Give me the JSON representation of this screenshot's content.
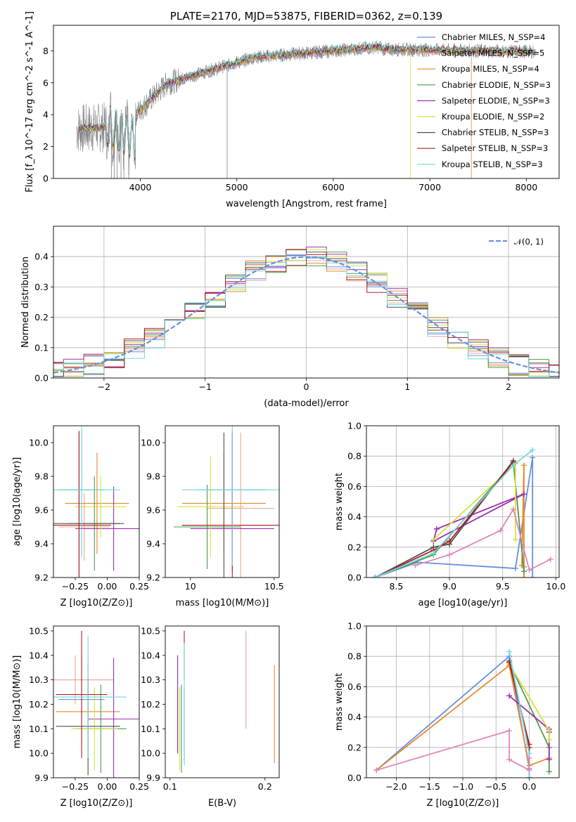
{
  "chart_data": [
    {
      "type": "line",
      "title": "PLATE=2170, MJD=53875, FIBERID=0362, z=0.139",
      "xlabel": "wavelength [Angstrom, rest frame]",
      "ylabel": "Flux [f_λ 10^-17 erg cm^-2 s^-1 A^-1]",
      "xlim": [
        3100,
        8340
      ],
      "ylim": [
        0,
        9.6
      ],
      "xticks": [
        4000,
        5000,
        6000,
        7000,
        8000
      ],
      "yticks": [
        0,
        2,
        4,
        6,
        8
      ],
      "grid": false,
      "legend_position": "top-right",
      "data_color": "#808080",
      "series": [
        {
          "name": "Chabrier MILES, N_SSP=4",
          "color": "#6890e0"
        },
        {
          "name": "Salpeter MILES, N_SSP=5",
          "color": "#e8a898"
        },
        {
          "name": "Kroupa MILES, N_SSP=4",
          "color": "#e68a2e"
        },
        {
          "name": "Chabrier ELODIE, N_SSP=3",
          "color": "#4f9a4f"
        },
        {
          "name": "Salpeter ELODIE, N_SSP=3",
          "color": "#9b30b0"
        },
        {
          "name": "Kroupa ELODIE, N_SSP=2",
          "color": "#d8e040"
        },
        {
          "name": "Chabrier STELIB, N_SSP=3",
          "color": "#505050"
        },
        {
          "name": "Salpeter STELIB, N_SSP=3",
          "color": "#b02020"
        },
        {
          "name": "Kroupa STELIB, N_SSP=3",
          "color": "#70d8e0"
        }
      ]
    },
    {
      "type": "line",
      "xlabel": "(data-model)/error",
      "ylabel": "Normed distribution",
      "xlim": [
        -2.5,
        2.5
      ],
      "ylim": [
        0,
        0.5
      ],
      "xticks": [
        -2,
        -1,
        0,
        1,
        2
      ],
      "yticks": [
        0.0,
        0.1,
        0.2,
        0.3,
        0.4
      ],
      "grid": true,
      "legend_position": "top-right",
      "reference": {
        "label": "𝒩(0, 1)",
        "mean": 0,
        "sigma": 1,
        "color": "#6890e0"
      }
    },
    {
      "type": "scatter",
      "xlabel": "Z [log10(Z/Z⊙)]",
      "ylabel": "age [log10(age/yr)]",
      "xlim": [
        -0.42,
        0.25
      ],
      "ylim": [
        9.2,
        10.1
      ],
      "xticks": [
        -0.25,
        0.0,
        0.25
      ],
      "yticks": [
        9.2,
        9.4,
        9.6,
        9.8,
        10.0
      ]
    },
    {
      "type": "scatter",
      "xlabel": "mass [log10(M/M⊙)]",
      "xlim": [
        9.85,
        10.53
      ],
      "ylim": [
        9.2,
        10.1
      ],
      "xticks": [
        10.0,
        10.5
      ],
      "yticks": [
        9.2,
        9.4,
        9.6,
        9.8,
        10.0
      ]
    },
    {
      "type": "line",
      "xlabel": "age [log10(age/yr)]",
      "ylabel": "mass weight",
      "xlim": [
        8.22,
        10.03
      ],
      "ylim": [
        0,
        1.0
      ],
      "xticks": [
        8.5,
        9.0,
        9.5,
        10.0
      ],
      "yticks": [
        0.0,
        0.2,
        0.4,
        0.6,
        0.8,
        1.0
      ],
      "grid": true,
      "series": [
        {
          "color": "#6890e0",
          "x": [
            8.3,
            8.7,
            9.62,
            9.78,
            9.78
          ],
          "y": [
            0.0,
            0.1,
            0.06,
            0.79,
            0.0
          ]
        },
        {
          "color": "#e68a2e",
          "x": [
            9.7,
            9.7,
            9.7,
            9.68
          ],
          "y": [
            0.0,
            0.07,
            0.74,
            0.08
          ]
        },
        {
          "color": "#4f9a4f",
          "x": [
            8.3,
            8.85,
            9.6,
            9.7
          ],
          "y": [
            0.0,
            0.15,
            0.76,
            0.04
          ]
        },
        {
          "color": "#9b30b0",
          "x": [
            8.85,
            8.88,
            9.7,
            8.85
          ],
          "y": [
            0.24,
            0.32,
            0.55,
            0.24
          ]
        },
        {
          "color": "#d8e040",
          "x": [
            8.85,
            9.62,
            9.62
          ],
          "y": [
            0.25,
            0.75,
            0.25
          ]
        },
        {
          "color": "#505050",
          "x": [
            8.3,
            8.85,
            9.0,
            9.6
          ],
          "y": [
            0.0,
            0.2,
            0.22,
            0.77
          ]
        },
        {
          "color": "#b02020",
          "x": [
            8.3,
            8.85,
            9.0,
            9.6
          ],
          "y": [
            0.0,
            0.18,
            0.24,
            0.76
          ]
        },
        {
          "color": "#70d8e0",
          "x": [
            8.3,
            8.85,
            9.6,
            9.78
          ],
          "y": [
            0.0,
            0.16,
            0.74,
            0.84
          ]
        },
        {
          "color": "#e088b8",
          "x": [
            8.68,
            9.0,
            9.48,
            9.6,
            9.75,
            9.95
          ],
          "y": [
            0.08,
            0.15,
            0.31,
            0.45,
            0.05,
            0.12
          ]
        }
      ]
    },
    {
      "type": "scatter",
      "xlabel": "Z [log10(Z/Z⊙)]",
      "ylabel": "mass [log10(M/M⊙)]",
      "xlim": [
        -0.42,
        0.25
      ],
      "ylim": [
        9.9,
        10.52
      ],
      "xticks": [
        -0.25,
        0.0,
        0.25
      ],
      "yticks": [
        9.9,
        10.0,
        10.1,
        10.2,
        10.3,
        10.4,
        10.5
      ]
    },
    {
      "type": "scatter",
      "xlabel": "E(B-V)",
      "xlim": [
        0.095,
        0.215
      ],
      "ylim": [
        9.9,
        10.52
      ],
      "xticks": [
        0.1,
        0.2
      ],
      "yticks": [
        9.9,
        10.0,
        10.1,
        10.2,
        10.3,
        10.4,
        10.5
      ]
    },
    {
      "type": "line",
      "xlabel": "Z [log10(Z/Z⊙)]",
      "ylabel": "mass weight",
      "xlim": [
        -2.45,
        0.45
      ],
      "ylim": [
        0,
        1.0
      ],
      "xticks": [
        -2.0,
        -1.5,
        -1.0,
        -0.5,
        0.0
      ],
      "yticks": [
        0.0,
        0.2,
        0.4,
        0.6,
        0.8,
        1.0
      ],
      "grid": true,
      "series": [
        {
          "color": "#6890e0",
          "x": [
            -2.3,
            -0.3,
            0.0,
            0.0
          ],
          "y": [
            0.05,
            0.8,
            0.06,
            0.0
          ]
        },
        {
          "color": "#e68a2e",
          "x": [
            -2.3,
            -0.3,
            0.0,
            0.3
          ],
          "y": [
            0.05,
            0.74,
            0.08,
            0.13
          ]
        },
        {
          "color": "#4f9a4f",
          "x": [
            -0.3,
            0.3,
            0.3
          ],
          "y": [
            0.76,
            0.2,
            0.04
          ]
        },
        {
          "color": "#9b30b0",
          "x": [
            -0.3,
            0.3,
            0.3,
            0.3
          ],
          "y": [
            0.54,
            0.32,
            0.12,
            0.3
          ]
        },
        {
          "color": "#d8e040",
          "x": [
            -0.3,
            0.3,
            0.3
          ],
          "y": [
            0.75,
            0.31,
            0.25
          ]
        },
        {
          "color": "#505050",
          "x": [
            -0.3,
            0.0,
            0.0
          ],
          "y": [
            0.77,
            0.2,
            0.0
          ]
        },
        {
          "color": "#b02020",
          "x": [
            -0.3,
            0.0,
            0.0
          ],
          "y": [
            0.76,
            0.22,
            0.0
          ]
        },
        {
          "color": "#70d8e0",
          "x": [
            -0.3,
            0.0,
            0.0
          ],
          "y": [
            0.83,
            0.16,
            0.0
          ]
        },
        {
          "color": "#e088b8",
          "x": [
            -2.3,
            -0.3,
            -0.3,
            0.0,
            0.0
          ],
          "y": [
            0.05,
            0.31,
            0.12,
            0.05,
            0.13
          ]
        }
      ]
    }
  ]
}
